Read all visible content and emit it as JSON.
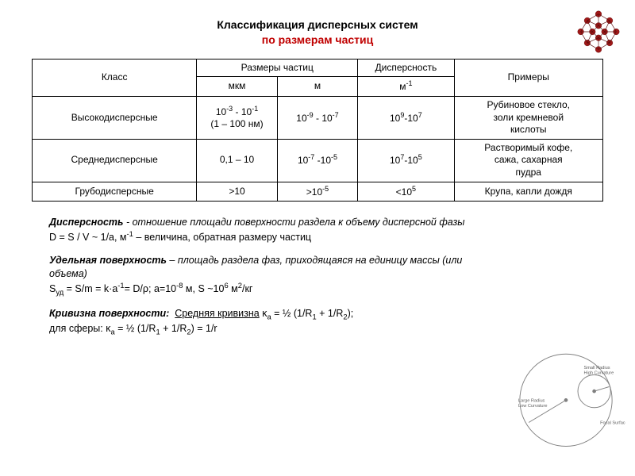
{
  "title": {
    "line1": "Классификация дисперсных систем",
    "line2": "по размерам частиц",
    "line2_color": "#c00000"
  },
  "molecule_color": "#a01818",
  "table": {
    "headers": {
      "class": "Класс",
      "size": "Размеры частиц",
      "size_um": "мкм",
      "size_m": "м",
      "disp": "Дисперсность",
      "disp_unit_html": "м<sup>-1</sup>",
      "examples": "Примеры"
    },
    "rows": [
      {
        "class": "Высокодисперсные",
        "size_um_html": "10<sup>-3</sup> - 10<sup>-1</sup><br>(1 – 100 нм)",
        "size_m_html": "10<sup>-9</sup> - 10<sup>-7</sup>",
        "disp_html": "10<sup>9</sup>-10<sup>7</sup>",
        "examples_html": "Рубиновое стекло,<br>золи кремневой<br>кислоты"
      },
      {
        "class": "Среднедисперсные",
        "size_um_html": "0,1 – 10",
        "size_m_html": "10<sup>-7</sup> -10<sup>-5</sup>",
        "disp_html": "10<sup>7</sup>-10<sup>5</sup>",
        "examples_html": "Растворимый кофе,<br>сажа, сахарная<br>пудра"
      },
      {
        "class": "Грубодисперсные",
        "size_um_html": ">10",
        "size_m_html": ">10<sup>-5</sup>",
        "disp_html": "<10<sup>5</sup>",
        "examples_html": "Крупа, капли дождя"
      }
    ]
  },
  "definitions": {
    "dispersity_term": "Дисперсность",
    "dispersity_text": " -  отношение площади поверхности раздела к объему дисперсной фазы",
    "dispersity_formula_html": "D = S / V ~ 1/a, м<sup>-1</sup> – величина, обратная размеру частиц",
    "specific_surface_term": "Удельная поверхность",
    "specific_surface_text": " – площадь раздела фаз, приходящаяся на единицу массы  (или объема)",
    "specific_surface_formula_html": "S<sub>уд</sub> = S/m = k·a<sup>-1</sup>= D/ρ;   a=10<sup>-8</sup> м, S ~10<sup>6</sup> м<sup>2</sup>/кг",
    "curvature_term": "Кривизна поверхности:",
    "curvature_label": "Средняя кривизна",
    "curvature_formula_html": " κ<sub>a</sub> = ½ (1/R<sub>1</sub>  + 1/R<sub>2</sub>);",
    "curvature_sphere_html": "для сферы: κ<sub>a</sub> = ½ (1/R<sub>1</sub> + 1/R<sub>2</sub>) = 1/r"
  },
  "curvature_diagram": {
    "labels": {
      "small": "Small Radius",
      "small2": "High Curvature",
      "large": "Large Radius",
      "large2": "Low Curvature",
      "focal": "Focal Surface"
    },
    "stroke": "#808080",
    "text_color": "#606060"
  }
}
